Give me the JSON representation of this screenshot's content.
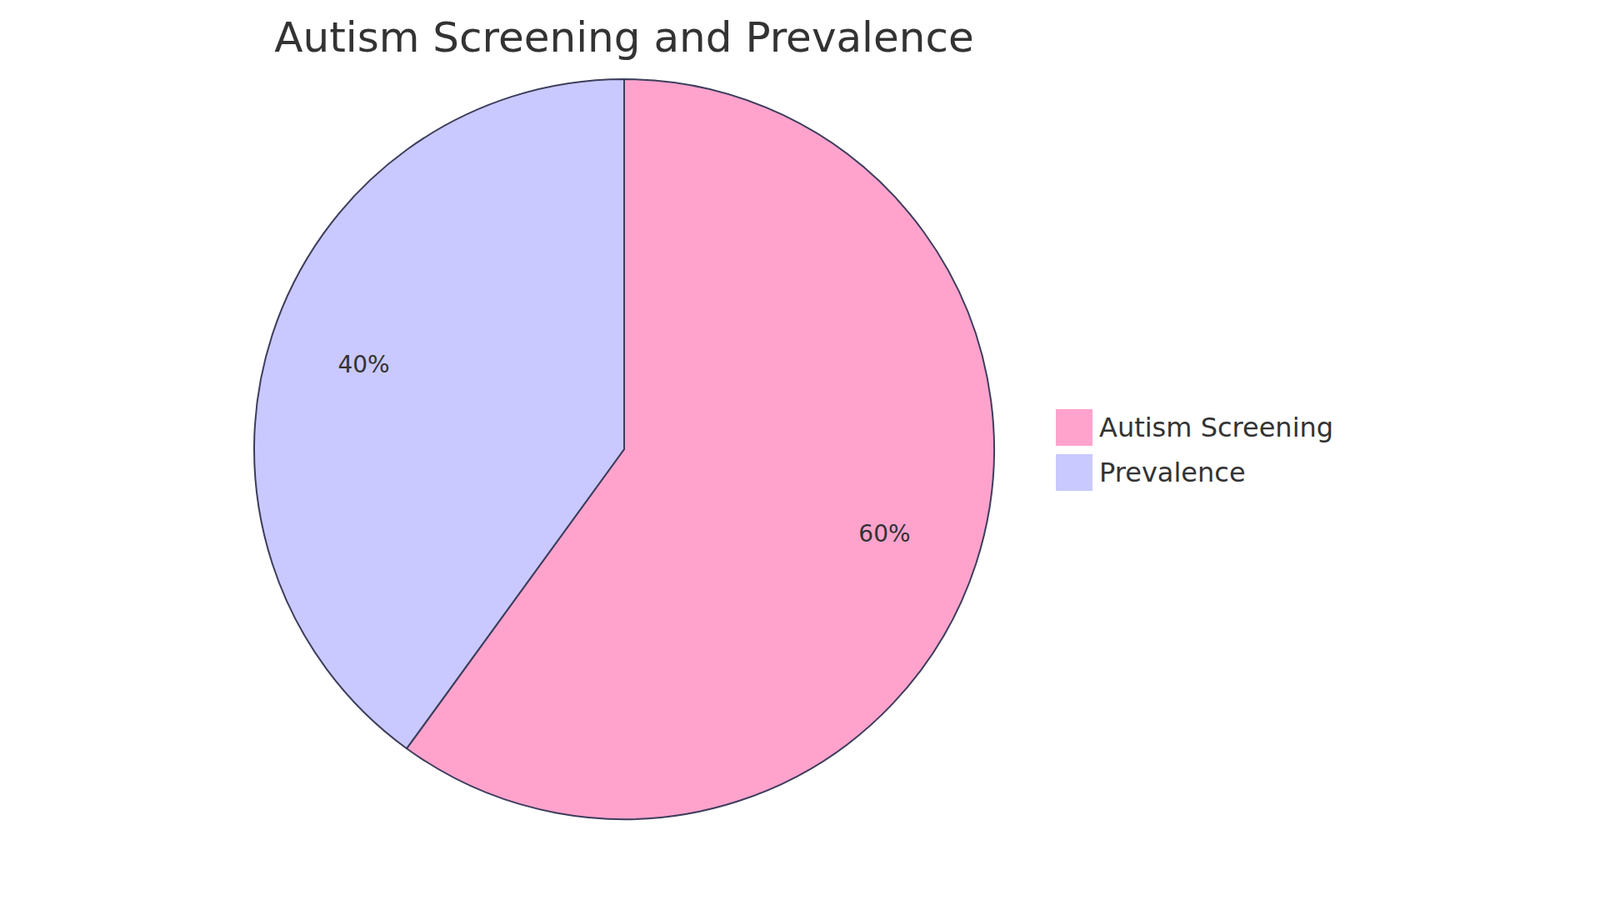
{
  "chart_data": {
    "type": "pie",
    "title": "Autism Screening and Prevalence",
    "categories": [
      "Autism Screening",
      "Prevalence"
    ],
    "values": [
      60,
      40
    ],
    "value_labels": [
      "60%",
      "40%"
    ],
    "colors": [
      "#ffa3cd",
      "#c9c9ff"
    ],
    "data_labels": true,
    "legend": "right"
  }
}
